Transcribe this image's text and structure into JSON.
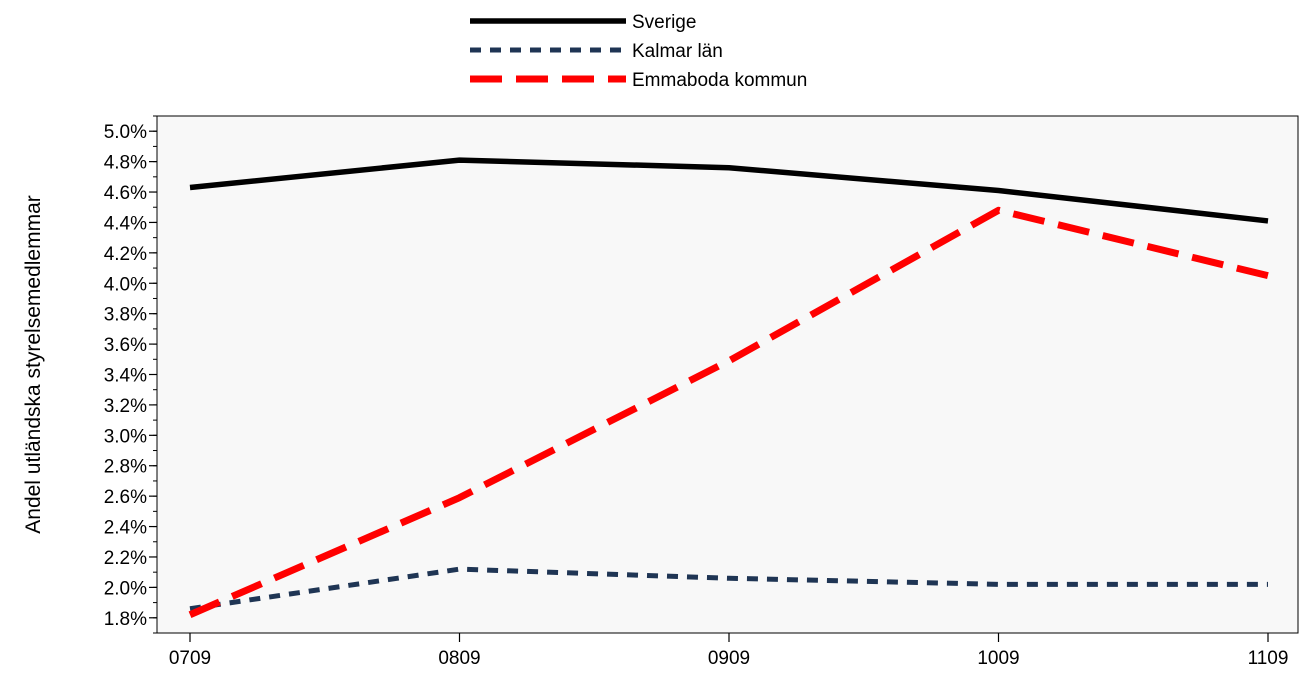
{
  "chart_data": {
    "type": "line",
    "categories": [
      "0709",
      "0809",
      "0909",
      "1009",
      "1109"
    ],
    "series": [
      {
        "name": "Sverige",
        "values": [
          4.63,
          4.81,
          4.76,
          4.61,
          4.41
        ],
        "color": "#000000",
        "style": "solid"
      },
      {
        "name": "Kalmar län",
        "values": [
          1.86,
          2.12,
          2.06,
          2.02,
          2.02
        ],
        "color": "#1f3554",
        "style": "dotted"
      },
      {
        "name": "Emmaboda kommun",
        "values": [
          1.82,
          2.59,
          3.49,
          4.48,
          4.05
        ],
        "color": "#ff0000",
        "style": "dashed"
      }
    ],
    "ylabel": "Andel utländska styrelsemedlemmar",
    "xlabel": "",
    "ylim": [
      1.7,
      5.1
    ],
    "yticks": [
      "1.8%",
      "2.0%",
      "2.2%",
      "2.4%",
      "2.6%",
      "2.8%",
      "3.0%",
      "3.2%",
      "3.4%",
      "3.6%",
      "3.8%",
      "4.0%",
      "4.2%",
      "4.4%",
      "4.6%",
      "4.8%",
      "5.0%"
    ],
    "legend_position": "top-center",
    "plot_background": "#f8f8f8",
    "grid": false
  }
}
